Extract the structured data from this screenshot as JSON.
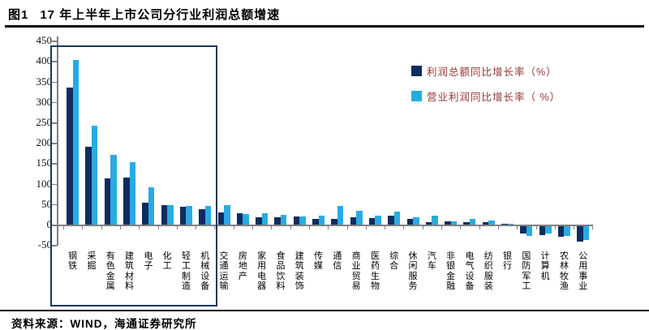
{
  "figure": {
    "label": "图1",
    "title": "17 年上半年上市公司分行业利润总额增速"
  },
  "source_note": "资料来源：WIND，海通证券研究所",
  "colors": {
    "profit_total_bar": "#0e2d5f",
    "operating_profit_bar": "#29abe2",
    "legend_text": "#953735",
    "axis_gray": "#808080",
    "highlight_box": "#17375e",
    "title_text": "#000000"
  },
  "chart_data": {
    "type": "bar",
    "title": "17 年上半年上市公司分行业利润总额增速",
    "categories": [
      "钢铁",
      "采掘",
      "有色金属",
      "建筑材料",
      "电子",
      "化工",
      "轻工制造",
      "机械设备",
      "交通运输",
      "房地产",
      "家用电器",
      "食品饮料",
      "建筑装饰",
      "传媒",
      "通信",
      "商业贸易",
      "医药生物",
      "综合",
      "休闲服务",
      "汽车",
      "非银金融",
      "电气设备",
      "纺织服装",
      "银行",
      "国防军工",
      "计算机",
      "农林牧渔",
      "公用事业"
    ],
    "series": [
      {
        "name": "利润总额同比增长率（%）",
        "color": "#0e2d5f",
        "values": [
          335,
          190,
          113,
          115,
          53,
          47,
          43,
          38,
          30,
          27,
          17,
          18,
          19,
          13,
          13,
          17,
          16,
          21,
          14,
          6,
          8,
          6,
          5,
          2,
          -18,
          -22,
          -25,
          -37
        ]
      },
      {
        "name": "营业利润同比增长率（ %）",
        "color": "#29abe2",
        "values": [
          402,
          242,
          170,
          152,
          91,
          48,
          46,
          45,
          48,
          25,
          28,
          23,
          20,
          22,
          46,
          33,
          21,
          31,
          18,
          21,
          7,
          13,
          10,
          2,
          -24,
          -17,
          -24,
          -34
        ]
      }
    ],
    "xlabel": "",
    "ylabel": "",
    "ylim": [
      -50,
      450
    ],
    "ytick_step": 50,
    "grid": false,
    "legend_position": "top-right",
    "highlight_box": {
      "from_category": "钢铁",
      "to_category": "机械设备"
    }
  }
}
